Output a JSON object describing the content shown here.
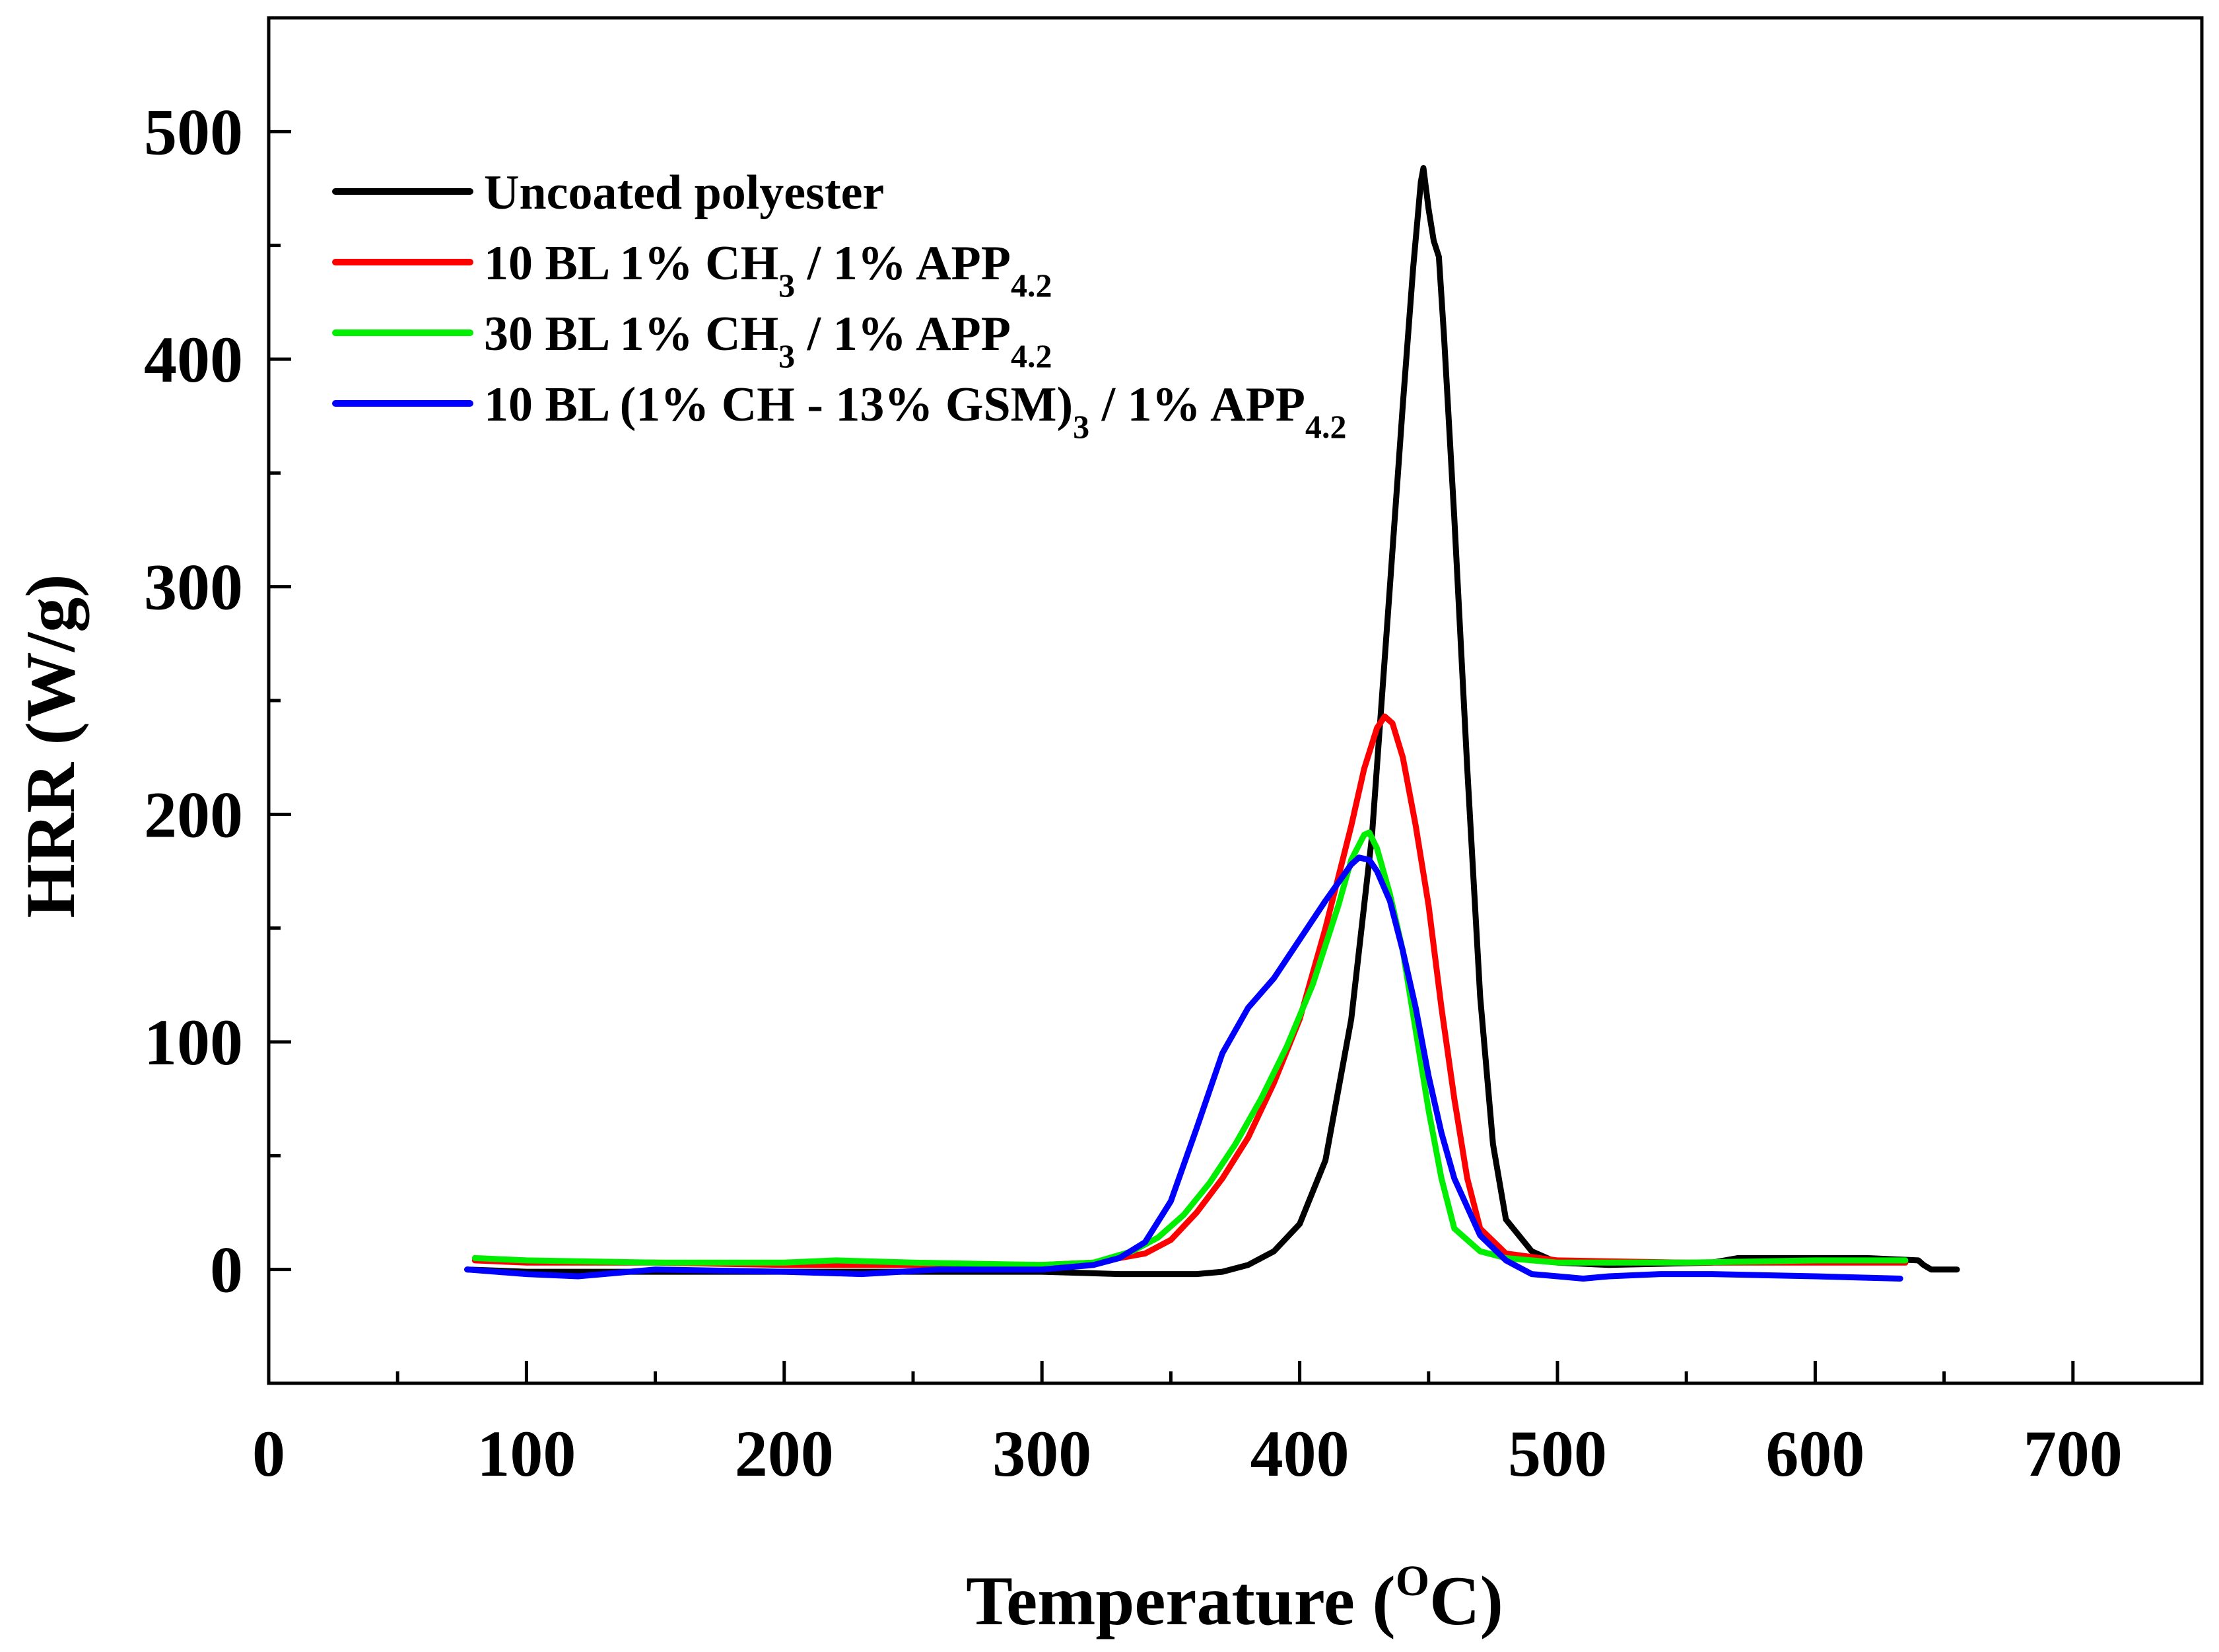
{
  "chart_data": {
    "type": "line",
    "title": "",
    "xlabel": {
      "main": "Temperature (",
      "sup": "O",
      "tail": "C)"
    },
    "ylabel": "HRR (W/g)",
    "xlim": [
      0,
      750
    ],
    "ylim": [
      -50,
      550
    ],
    "xticks": [
      0,
      100,
      200,
      300,
      400,
      500,
      600,
      700
    ],
    "xtick_labels": [
      "0",
      "100",
      "200",
      "300",
      "400",
      "500",
      "600",
      "700"
    ],
    "x_minor_ticks": [
      50,
      150,
      250,
      350,
      450,
      550,
      650
    ],
    "yticks": [
      0,
      100,
      200,
      300,
      400,
      500
    ],
    "ytick_labels": [
      "0",
      "100",
      "200",
      "300",
      "400",
      "500"
    ],
    "y_minor_ticks": [
      -50,
      50,
      150,
      250,
      350,
      450,
      550
    ],
    "grid": false,
    "legend_position": "top-left",
    "series": [
      {
        "name": "Uncoated polyester",
        "legend_parts": [
          {
            "t": "Uncoated polyester"
          }
        ],
        "color": "#000000",
        "points": [
          [
            77,
            0
          ],
          [
            100,
            -1
          ],
          [
            150,
            -1
          ],
          [
            200,
            -1
          ],
          [
            250,
            -1
          ],
          [
            300,
            -1
          ],
          [
            330,
            -2
          ],
          [
            360,
            -2
          ],
          [
            370,
            -1
          ],
          [
            380,
            2
          ],
          [
            390,
            8
          ],
          [
            400,
            20
          ],
          [
            410,
            48
          ],
          [
            420,
            110
          ],
          [
            428,
            190
          ],
          [
            435,
            300
          ],
          [
            440,
            380
          ],
          [
            444,
            440
          ],
          [
            447,
            478
          ],
          [
            448,
            484
          ],
          [
            450,
            466
          ],
          [
            452,
            452
          ],
          [
            454,
            445
          ],
          [
            456,
            410
          ],
          [
            460,
            330
          ],
          [
            465,
            220
          ],
          [
            470,
            120
          ],
          [
            475,
            55
          ],
          [
            480,
            22
          ],
          [
            490,
            8
          ],
          [
            500,
            3
          ],
          [
            520,
            2
          ],
          [
            560,
            3
          ],
          [
            570,
            5
          ],
          [
            600,
            5
          ],
          [
            620,
            5
          ],
          [
            640,
            4
          ],
          [
            642,
            2
          ],
          [
            645,
            0
          ],
          [
            655,
            0
          ]
        ]
      },
      {
        "name": "10 BL 1% CH3 / 1% APP4.2",
        "legend_parts": [
          {
            "t": "10 BL 1% CH"
          },
          {
            "t": "3",
            "sub": true
          },
          {
            "t": " / 1% APP"
          },
          {
            "t": "4.2",
            "sub": true
          }
        ],
        "color": "#ff0000",
        "points": [
          [
            80,
            4
          ],
          [
            100,
            3
          ],
          [
            150,
            3
          ],
          [
            200,
            2
          ],
          [
            250,
            2
          ],
          [
            300,
            2
          ],
          [
            320,
            3
          ],
          [
            340,
            7
          ],
          [
            350,
            13
          ],
          [
            360,
            25
          ],
          [
            370,
            40
          ],
          [
            380,
            58
          ],
          [
            390,
            82
          ],
          [
            400,
            110
          ],
          [
            410,
            150
          ],
          [
            420,
            195
          ],
          [
            425,
            220
          ],
          [
            430,
            238
          ],
          [
            433,
            243
          ],
          [
            436,
            240
          ],
          [
            440,
            225
          ],
          [
            445,
            195
          ],
          [
            450,
            160
          ],
          [
            455,
            115
          ],
          [
            460,
            75
          ],
          [
            465,
            40
          ],
          [
            470,
            18
          ],
          [
            480,
            7
          ],
          [
            500,
            4
          ],
          [
            550,
            3
          ],
          [
            600,
            3
          ],
          [
            635,
            3
          ]
        ]
      },
      {
        "name": "30 BL 1% CH3 / 1% APP4.2",
        "legend_parts": [
          {
            "t": "30 BL 1% CH"
          },
          {
            "t": "3",
            "sub": true
          },
          {
            "t": " / 1% APP"
          },
          {
            "t": "4.2",
            "sub": true
          }
        ],
        "color": "#00ee00",
        "points": [
          [
            80,
            5
          ],
          [
            100,
            4
          ],
          [
            150,
            3
          ],
          [
            200,
            3
          ],
          [
            220,
            4
          ],
          [
            250,
            3
          ],
          [
            300,
            2
          ],
          [
            320,
            3
          ],
          [
            335,
            8
          ],
          [
            345,
            14
          ],
          [
            355,
            24
          ],
          [
            365,
            38
          ],
          [
            375,
            55
          ],
          [
            385,
            75
          ],
          [
            395,
            98
          ],
          [
            405,
            125
          ],
          [
            415,
            160
          ],
          [
            420,
            180
          ],
          [
            425,
            191
          ],
          [
            427,
            192
          ],
          [
            430,
            185
          ],
          [
            435,
            165
          ],
          [
            440,
            140
          ],
          [
            445,
            105
          ],
          [
            450,
            70
          ],
          [
            455,
            40
          ],
          [
            460,
            18
          ],
          [
            470,
            8
          ],
          [
            480,
            5
          ],
          [
            500,
            3
          ],
          [
            550,
            3
          ],
          [
            600,
            4
          ],
          [
            635,
            4
          ]
        ]
      },
      {
        "name": "10 BL (1% CH - 13% GSM)3 / 1% APP4.2",
        "legend_parts": [
          {
            "t": "10 BL (1% CH - 13% GSM)"
          },
          {
            "t": "3",
            "sub": true
          },
          {
            "t": " / 1% APP"
          },
          {
            "t": "4.2",
            "sub": true
          }
        ],
        "color": "#0000ff",
        "points": [
          [
            77,
            0
          ],
          [
            100,
            -2
          ],
          [
            120,
            -3
          ],
          [
            150,
            0
          ],
          [
            200,
            -1
          ],
          [
            230,
            -2
          ],
          [
            260,
            0
          ],
          [
            300,
            0
          ],
          [
            320,
            2
          ],
          [
            330,
            5
          ],
          [
            340,
            12
          ],
          [
            350,
            30
          ],
          [
            360,
            62
          ],
          [
            370,
            95
          ],
          [
            380,
            115
          ],
          [
            390,
            128
          ],
          [
            400,
            145
          ],
          [
            410,
            162
          ],
          [
            415,
            170
          ],
          [
            420,
            178
          ],
          [
            423,
            181
          ],
          [
            427,
            180
          ],
          [
            430,
            175
          ],
          [
            435,
            162
          ],
          [
            440,
            140
          ],
          [
            445,
            115
          ],
          [
            450,
            85
          ],
          [
            455,
            60
          ],
          [
            460,
            40
          ],
          [
            470,
            15
          ],
          [
            480,
            4
          ],
          [
            490,
            -2
          ],
          [
            500,
            -3
          ],
          [
            510,
            -4
          ],
          [
            520,
            -3
          ],
          [
            540,
            -2
          ],
          [
            560,
            -2
          ],
          [
            600,
            -3
          ],
          [
            633,
            -4
          ]
        ]
      }
    ]
  }
}
